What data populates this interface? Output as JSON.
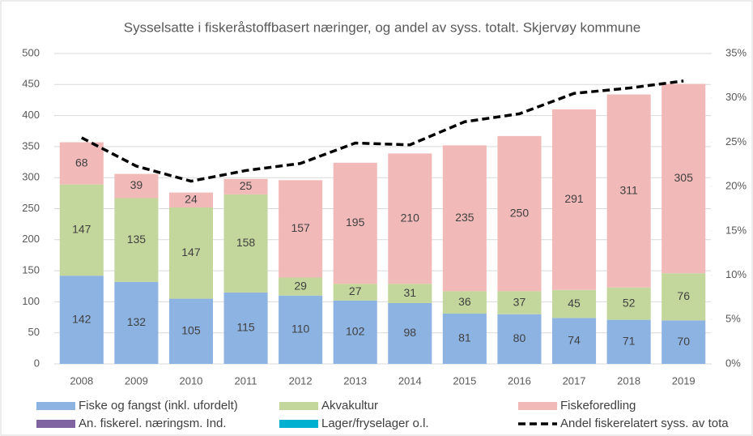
{
  "chart_data": {
    "type": "bar",
    "title": "Sysselsatte i fiskeråstoffbasert næringer, og andel av syss. totalt. Skjervøy kommune",
    "categories": [
      "2008",
      "2009",
      "2010",
      "2011",
      "2012",
      "2013",
      "2014",
      "2015",
      "2016",
      "2017",
      "2018",
      "2019"
    ],
    "stacked": true,
    "series": [
      {
        "name": "Fiske og fangst (inkl. ufordelt)",
        "color": "#8db3e2",
        "values": [
          142,
          132,
          105,
          115,
          110,
          102,
          98,
          81,
          80,
          74,
          71,
          70
        ]
      },
      {
        "name": "Akvakultur",
        "color": "#c3d69b",
        "values": [
          147,
          135,
          147,
          158,
          29,
          27,
          31,
          36,
          37,
          45,
          52,
          76
        ]
      },
      {
        "name": "Fiskeforedling",
        "color": "#f2b9b9",
        "values": [
          68,
          39,
          24,
          25,
          157,
          195,
          210,
          235,
          250,
          291,
          311,
          305
        ]
      },
      {
        "name": "An. fiskerel. næringsm. Ind.",
        "color": "#8064a2",
        "values": [
          0,
          0,
          0,
          0,
          0,
          0,
          0,
          0,
          0,
          0,
          0,
          0
        ]
      },
      {
        "name": "Lager/fryselager o.l.",
        "color": "#00b0d0",
        "values": [
          0,
          0,
          0,
          0,
          0,
          0,
          0,
          0,
          0,
          0,
          0,
          0
        ]
      },
      {
        "name": "Andel fiskerelatert syss. av tota",
        "color": "#000000",
        "type": "line",
        "dashed": true,
        "axis": "y2",
        "values": [
          25.5,
          22.3,
          20.6,
          21.8,
          22.6,
          24.9,
          24.7,
          27.3,
          28.2,
          30.5,
          31.1,
          31.9
        ]
      }
    ],
    "ylim": [
      0,
      500
    ],
    "yticks": [
      0,
      50,
      100,
      150,
      200,
      250,
      300,
      350,
      400,
      450,
      500
    ],
    "y2lim": [
      0,
      35
    ],
    "y2ticks": [
      {
        "value": 0,
        "label": "0%"
      },
      {
        "value": 5,
        "label": "5%"
      },
      {
        "value": 10,
        "label": "10%"
      },
      {
        "value": 15,
        "label": "15%"
      },
      {
        "value": 20,
        "label": "20%"
      },
      {
        "value": 25,
        "label": "25%"
      },
      {
        "value": 30,
        "label": "30%"
      },
      {
        "value": 35,
        "label": "35%"
      }
    ],
    "grid": true,
    "legend": "bottom"
  }
}
